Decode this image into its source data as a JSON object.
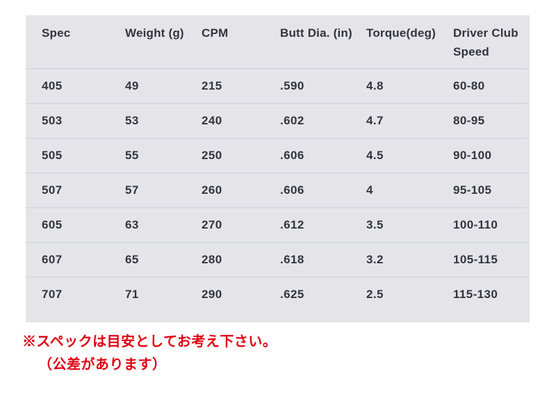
{
  "table": {
    "columns": [
      "Spec",
      "Weight (g)",
      "CPM",
      "Butt Dia. (in)",
      "Torque(deg)",
      "Driver Club Speed"
    ],
    "rows": [
      [
        "405",
        "49",
        "215",
        ".590",
        "4.8",
        "60-80"
      ],
      [
        "503",
        "53",
        "240",
        ".602",
        "4.7",
        "80-95"
      ],
      [
        "505",
        "55",
        "250",
        ".606",
        "4.5",
        "90-100"
      ],
      [
        "507",
        "57",
        "260",
        ".606",
        "4",
        "95-105"
      ],
      [
        "605",
        "63",
        "270",
        ".612",
        "3.5",
        "100-110"
      ],
      [
        "607",
        "65",
        "280",
        ".618",
        "3.2",
        "105-115"
      ],
      [
        "707",
        "71",
        "290",
        ".625",
        "2.5",
        "115-130"
      ]
    ]
  },
  "notes": {
    "line1": "※スペックは目安としてお考え下さい。",
    "line2": "（公差があります）"
  },
  "colors": {
    "table_background": "#e5e5e9",
    "divider": "#d3dbde",
    "text": "#32343f",
    "note_red": "#e00012"
  }
}
